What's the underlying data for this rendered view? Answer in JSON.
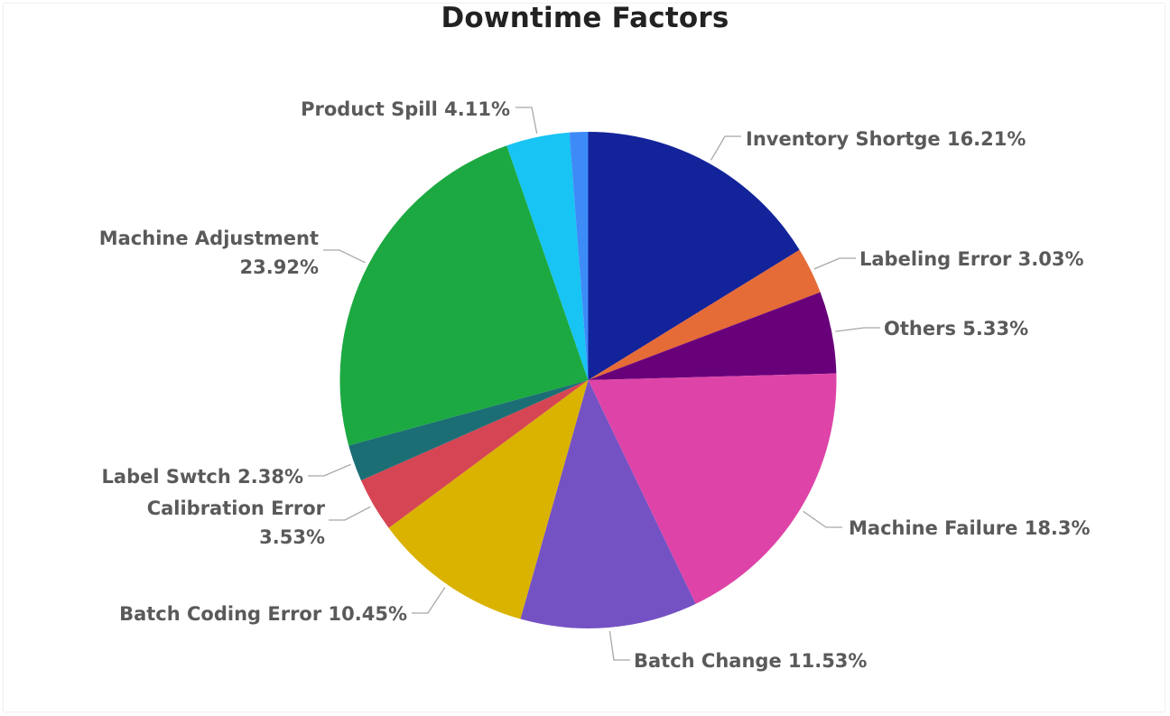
{
  "chart_data": {
    "type": "pie",
    "title": "Downtime Factors",
    "slices": [
      {
        "label": "Inventory Shortge",
        "value": 16.21,
        "display": "16.21%",
        "color": "#13239a"
      },
      {
        "label": "Labeling Error",
        "value": 3.03,
        "display": "3.03%",
        "color": "#e56b37"
      },
      {
        "label": "Others",
        "value": 5.33,
        "display": "5.33%",
        "color": "#68007a"
      },
      {
        "label": "Machine Failure",
        "value": 18.3,
        "display": "18.3%",
        "color": "#de44a8"
      },
      {
        "label": "Batch Change",
        "value": 11.53,
        "display": "11.53%",
        "color": "#7552c4"
      },
      {
        "label": "Batch Coding Error",
        "value": 10.45,
        "display": "10.45%",
        "color": "#d9b300"
      },
      {
        "label": "Calibration Error",
        "value": 3.53,
        "display": "3.53%",
        "color": "#d64553"
      },
      {
        "label": "Label Swtch",
        "value": 2.38,
        "display": "2.38%",
        "color": "#1c6e75"
      },
      {
        "label": "Machine Adjustment",
        "value": 23.92,
        "display": "23.92%",
        "color": "#1ca941"
      },
      {
        "label": "Product Spill",
        "value": 4.11,
        "display": "4.11%",
        "color": "#17c4f3"
      },
      {
        "label": "",
        "value": 1.21,
        "display": "",
        "color": "#3d8bf7"
      }
    ],
    "start_angle": "12 o'clock",
    "direction": "clockwise",
    "legend": "none"
  }
}
